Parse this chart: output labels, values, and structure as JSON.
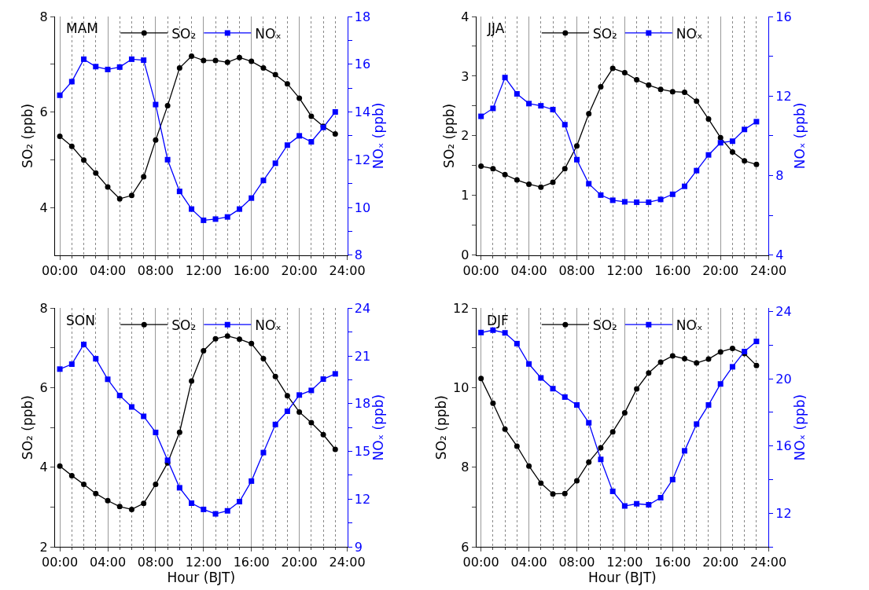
{
  "chart_data": [
    {
      "type": "line",
      "title": "MAM",
      "x": [
        0,
        1,
        2,
        3,
        4,
        5,
        6,
        7,
        8,
        9,
        10,
        11,
        12,
        13,
        14,
        15,
        16,
        17,
        18,
        19,
        20,
        21,
        22,
        23
      ],
      "ylabel": "SO₂ (ppb)",
      "y2label": "NOₓ (ppb)",
      "xlim": [
        -0.4,
        24
      ],
      "xticks": [
        {
          "value": 0,
          "label": "00:00"
        },
        {
          "value": 4,
          "label": "04:00"
        },
        {
          "value": 8,
          "label": "08:00"
        },
        {
          "value": 12,
          "label": "12:00"
        },
        {
          "value": 16,
          "label": "16:00"
        },
        {
          "value": 20,
          "label": "20:00"
        },
        {
          "value": 24,
          "label": "24:00"
        }
      ],
      "ylim": [
        3,
        8
      ],
      "yticks": [
        4,
        {
          "value": 5,
          "label": null
        },
        6,
        {
          "value": 7,
          "label": null
        },
        8
      ],
      "y2lim": [
        8,
        18
      ],
      "y2ticks": [
        8,
        {
          "value": 9,
          "label": null
        },
        10,
        {
          "value": 11,
          "label": null
        },
        12,
        {
          "value": 13,
          "label": null
        },
        14,
        {
          "value": 15,
          "label": null
        },
        16,
        {
          "value": 17,
          "label": null
        },
        18
      ],
      "grid": "x",
      "legend": "top",
      "series": [
        {
          "name": "SO₂",
          "color": "#000000",
          "marker": "circle",
          "values": [
            5.49,
            5.28,
            4.99,
            4.72,
            4.43,
            4.18,
            4.25,
            4.64,
            5.41,
            6.13,
            6.92,
            7.17,
            7.08,
            7.08,
            7.04,
            7.14,
            7.06,
            6.92,
            6.78,
            6.59,
            6.29,
            5.91,
            5.7,
            5.54
          ]
        },
        {
          "name": "NOₓ",
          "color": "#0000ff",
          "marker": "square",
          "axis": "y2",
          "values": [
            14.7,
            15.27,
            16.21,
            15.9,
            15.78,
            15.88,
            16.21,
            16.17,
            14.31,
            12.0,
            10.67,
            9.93,
            9.46,
            9.51,
            9.6,
            9.93,
            10.39,
            11.13,
            11.85,
            12.61,
            13.0,
            12.75,
            13.35,
            14.0
          ]
        }
      ]
    },
    {
      "type": "line",
      "title": "JJA",
      "x": [
        0,
        1,
        2,
        3,
        4,
        5,
        6,
        7,
        8,
        9,
        10,
        11,
        12,
        13,
        14,
        15,
        16,
        17,
        18,
        19,
        20,
        21,
        22,
        23
      ],
      "ylabel": "SO₂ (ppb)",
      "y2label": "NOₓ (ppb)",
      "xlim": [
        -0.4,
        24
      ],
      "xticks": [
        {
          "value": 0,
          "label": "00:00"
        },
        {
          "value": 4,
          "label": "04:00"
        },
        {
          "value": 8,
          "label": "08:00"
        },
        {
          "value": 12,
          "label": "12:00"
        },
        {
          "value": 16,
          "label": "16:00"
        },
        {
          "value": 20,
          "label": "20:00"
        },
        {
          "value": 24,
          "label": "24:00"
        }
      ],
      "ylim": [
        0,
        4
      ],
      "yticks": [
        0,
        {
          "value": 0.5,
          "label": null
        },
        1,
        {
          "value": 1.5,
          "label": null
        },
        2,
        {
          "value": 2.5,
          "label": null
        },
        3,
        {
          "value": 3.5,
          "label": null
        },
        4
      ],
      "y2lim": [
        4,
        16
      ],
      "y2ticks": [
        4,
        {
          "value": 6,
          "label": null
        },
        8,
        {
          "value": 10,
          "label": null
        },
        12,
        {
          "value": 14,
          "label": null
        },
        16
      ],
      "grid": "x",
      "legend": "top",
      "series": [
        {
          "name": "SO₂",
          "color": "#000000",
          "marker": "circle",
          "values": [
            1.49,
            1.45,
            1.35,
            1.26,
            1.19,
            1.14,
            1.22,
            1.45,
            1.83,
            2.37,
            2.82,
            3.13,
            3.06,
            2.94,
            2.85,
            2.78,
            2.74,
            2.73,
            2.58,
            2.28,
            1.97,
            1.73,
            1.58,
            1.52
          ]
        },
        {
          "name": "NOₓ",
          "color": "#0000ff",
          "marker": "square",
          "axis": "y2",
          "values": [
            10.98,
            11.38,
            12.93,
            12.11,
            11.62,
            11.51,
            11.32,
            10.56,
            8.8,
            7.59,
            7.02,
            6.76,
            6.68,
            6.66,
            6.66,
            6.8,
            7.06,
            7.46,
            8.25,
            9.04,
            9.65,
            9.73,
            10.32,
            10.71
          ]
        }
      ]
    },
    {
      "type": "line",
      "title": "SON",
      "x": [
        0,
        1,
        2,
        3,
        4,
        5,
        6,
        7,
        8,
        9,
        10,
        11,
        12,
        13,
        14,
        15,
        16,
        17,
        18,
        19,
        20,
        21,
        22,
        23
      ],
      "xlabel": "Hour (BJT)",
      "ylabel": "SO₂ (ppb)",
      "y2label": "NOₓ (ppb)",
      "xlim": [
        -0.4,
        24
      ],
      "xticks": [
        {
          "value": 0,
          "label": "00:00"
        },
        {
          "value": 4,
          "label": "04:00"
        },
        {
          "value": 8,
          "label": "08:00"
        },
        {
          "value": 12,
          "label": "12:00"
        },
        {
          "value": 16,
          "label": "16:00"
        },
        {
          "value": 20,
          "label": "20:00"
        },
        {
          "value": 24,
          "label": "24:00"
        }
      ],
      "ylim": [
        2,
        8
      ],
      "yticks": [
        2,
        {
          "value": 3,
          "label": null
        },
        4,
        {
          "value": 5,
          "label": null
        },
        6,
        {
          "value": 7,
          "label": null
        },
        8
      ],
      "y2lim": [
        9,
        24
      ],
      "y2ticks": [
        9,
        {
          "value": 10.5,
          "label": null
        },
        12,
        {
          "value": 13.5,
          "label": null
        },
        15,
        {
          "value": 16.5,
          "label": null
        },
        18,
        {
          "value": 19.5,
          "label": null
        },
        21,
        {
          "value": 22.5,
          "label": null
        },
        24
      ],
      "grid": "x",
      "legend": "top",
      "series": [
        {
          "name": "SO₂",
          "color": "#000000",
          "marker": "circle",
          "values": [
            4.03,
            3.79,
            3.57,
            3.34,
            3.16,
            3.01,
            2.94,
            3.09,
            3.57,
            4.11,
            4.88,
            6.17,
            6.93,
            7.23,
            7.3,
            7.22,
            7.11,
            6.73,
            6.28,
            5.8,
            5.39,
            5.12,
            4.82,
            4.45
          ]
        },
        {
          "name": "NOₓ",
          "color": "#0000ff",
          "marker": "square",
          "axis": "y2",
          "values": [
            20.17,
            20.48,
            21.72,
            20.82,
            19.53,
            18.51,
            17.79,
            17.2,
            16.19,
            14.44,
            12.71,
            11.74,
            11.35,
            11.07,
            11.26,
            11.84,
            13.13,
            14.92,
            16.69,
            17.52,
            18.54,
            18.83,
            19.54,
            19.87
          ]
        }
      ]
    },
    {
      "type": "line",
      "title": "DJF",
      "x": [
        0,
        1,
        2,
        3,
        4,
        5,
        6,
        7,
        8,
        9,
        10,
        11,
        12,
        13,
        14,
        15,
        16,
        17,
        18,
        19,
        20,
        21,
        22,
        23
      ],
      "xlabel": "Hour (BJT)",
      "ylabel": "SO₂ (ppb)",
      "y2label": "NOₓ (ppb)",
      "xlim": [
        -0.4,
        24
      ],
      "xticks": [
        {
          "value": 0,
          "label": "00:00"
        },
        {
          "value": 4,
          "label": "04:00"
        },
        {
          "value": 8,
          "label": "08:00"
        },
        {
          "value": 12,
          "label": "12:00"
        },
        {
          "value": 16,
          "label": "16:00"
        },
        {
          "value": 20,
          "label": "20:00"
        },
        {
          "value": 24,
          "label": "24:00"
        }
      ],
      "ylim": [
        6,
        12
      ],
      "yticks": [
        6,
        {
          "value": 7,
          "label": null
        },
        8,
        {
          "value": 9,
          "label": null
        },
        10,
        {
          "value": 11,
          "label": null
        },
        12
      ],
      "y2lim": [
        10,
        24.2
      ],
      "y2ticks": [
        {
          "value": 10,
          "label": null
        },
        12,
        {
          "value": 14,
          "label": null
        },
        16,
        {
          "value": 18,
          "label": null
        },
        20,
        {
          "value": 22,
          "label": null
        },
        24
      ],
      "grid": "x",
      "legend": "top",
      "series": [
        {
          "name": "SO₂",
          "color": "#000000",
          "marker": "circle",
          "values": [
            10.23,
            9.61,
            8.96,
            8.53,
            8.03,
            7.6,
            7.33,
            7.34,
            7.66,
            8.13,
            8.49,
            8.89,
            9.37,
            9.97,
            10.37,
            10.64,
            10.8,
            10.73,
            10.62,
            10.72,
            10.9,
            10.99,
            10.86,
            10.56
          ]
        },
        {
          "name": "NOₓ",
          "color": "#0000ff",
          "marker": "square",
          "axis": "y2",
          "values": [
            22.75,
            22.89,
            22.73,
            22.09,
            20.88,
            20.05,
            19.41,
            18.91,
            18.44,
            17.38,
            15.2,
            13.3,
            12.43,
            12.56,
            12.5,
            12.92,
            14.0,
            15.71,
            17.3,
            18.44,
            19.69,
            20.71,
            21.62,
            22.22
          ]
        }
      ]
    }
  ]
}
